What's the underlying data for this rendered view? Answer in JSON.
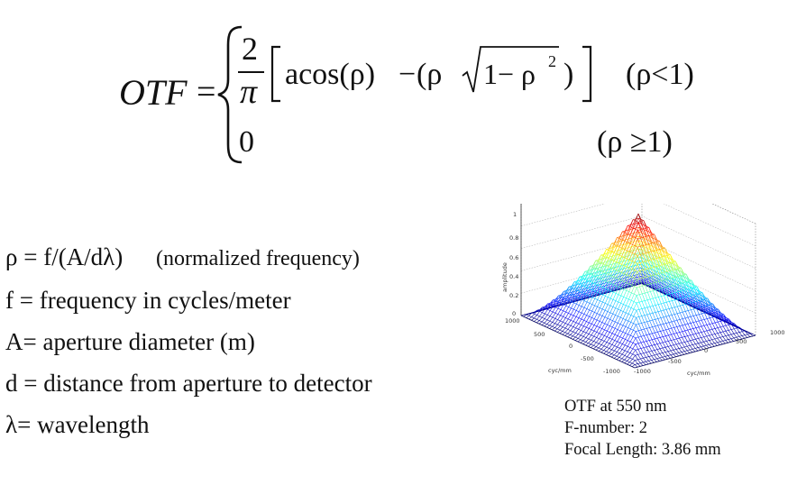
{
  "formula": {
    "lhs": "OTF",
    "equals": "=",
    "numerator": "2",
    "denominator": "π",
    "case1_expression_acos": "acos(ρ)",
    "case1_expression_minus": "−",
    "case1_expression_open": "(ρ",
    "case1_sqrt_content": "1− ρ",
    "case1_sqrt_exponent": "2",
    "case1_expression_close": ")",
    "case1_condition": "(ρ<1)",
    "case2_value": "0",
    "case2_condition": "(ρ ≥1)"
  },
  "definitions": [
    {
      "text": "ρ =  f/(A/dλ)",
      "note": "(normalized frequency)"
    },
    {
      "text": "f = frequency in cycles/meter"
    },
    {
      "text": "A= aperture diameter (m)"
    },
    {
      "text": "d = distance from aperture to detector"
    },
    {
      "text": "λ= wavelength"
    }
  ],
  "plot": {
    "zlabel": "amplitude",
    "z_ticks": [
      "0",
      "0.2",
      "0.4",
      "0.6",
      "0.8",
      "1"
    ],
    "x_ticks": [
      "1000",
      "500",
      "0",
      "-500",
      "-1000"
    ],
    "y_ticks": [
      "-1000",
      "-500",
      "0",
      "500",
      "1000"
    ],
    "x_label": "cyc/mm",
    "y_label": "cyc/mm"
  },
  "caption": {
    "line1": "OTF at 550 nm",
    "line2": "F-number: 2",
    "line3": "Focal Length: 3.86 mm"
  }
}
